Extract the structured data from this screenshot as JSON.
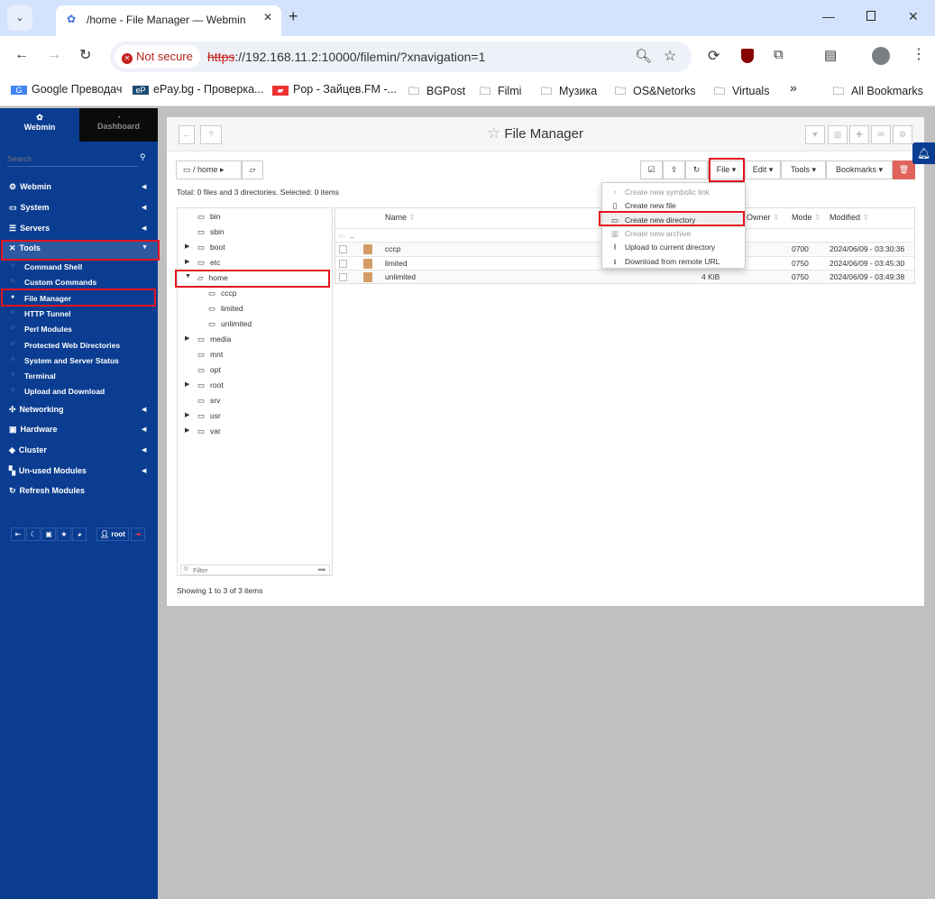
{
  "browser": {
    "tab_title": "/home - File Manager — Webmin",
    "not_secure": "Not secure",
    "url_scheme": "https",
    "url_rest": "://192.168.11.2:10000/filemin/?xnavigation=1",
    "bookmarks": [
      "Google Преводач",
      "ePay.bg - Проверка...",
      "Pop - Зайцев.FM -...",
      "BGPost",
      "Filmi",
      "Музика",
      "OS&Netorks",
      "Virtuals"
    ],
    "more": "»",
    "all_bookmarks": "All Bookmarks"
  },
  "sidebar": {
    "webmin_tab": "Webmin",
    "dashboard_tab": "Dashboard",
    "search_placeholder": "Search",
    "items": [
      {
        "label": "Webmin",
        "icon": "⚙"
      },
      {
        "label": "System",
        "icon": "▭"
      },
      {
        "label": "Servers",
        "icon": "☰"
      },
      {
        "label": "Tools",
        "icon": "✕"
      }
    ],
    "tools_sub": [
      "Command Shell",
      "Custom Commands",
      "File Manager",
      "HTTP Tunnel",
      "Perl Modules",
      "Protected Web Directories",
      "System and Server Status",
      "Terminal",
      "Upload and Download"
    ],
    "items2": [
      {
        "label": "Networking",
        "icon": "✣"
      },
      {
        "label": "Hardware",
        "icon": "▣"
      },
      {
        "label": "Cluster",
        "icon": "◈"
      },
      {
        "label": "Un-used Modules",
        "icon": "▚"
      },
      {
        "label": "Refresh Modules",
        "icon": "↻"
      }
    ],
    "user": "root",
    "active": "File Manager"
  },
  "panel": {
    "title": "File Manager",
    "breadcrumb": "home",
    "total": "Total: 0 files and 3 directories. Selected: 0 items",
    "toolbar": {
      "file": "File",
      "edit": "Edit",
      "tools": "Tools",
      "bookmarks": "Bookmarks"
    },
    "tree": [
      {
        "n": "bin",
        "d": 0,
        "e": ""
      },
      {
        "n": "sbin",
        "d": 0,
        "e": ""
      },
      {
        "n": "boot",
        "d": 0,
        "e": "c"
      },
      {
        "n": "etc",
        "d": 0,
        "e": "c"
      },
      {
        "n": "home",
        "d": 0,
        "e": "o"
      },
      {
        "n": "cccp",
        "d": 1,
        "e": ""
      },
      {
        "n": "limited",
        "d": 1,
        "e": ""
      },
      {
        "n": "unlimited",
        "d": 1,
        "e": ""
      },
      {
        "n": "media",
        "d": 0,
        "e": "c"
      },
      {
        "n": "mnt",
        "d": 0,
        "e": ""
      },
      {
        "n": "opt",
        "d": 0,
        "e": ""
      },
      {
        "n": "root",
        "d": 0,
        "e": "c"
      },
      {
        "n": "srv",
        "d": 0,
        "e": ""
      },
      {
        "n": "usr",
        "d": 0,
        "e": "c"
      },
      {
        "n": "var",
        "d": 0,
        "e": "c"
      }
    ],
    "filter_placeholder": "Filter",
    "columns": {
      "name": "Name",
      "owner": "Owner",
      "mode": "Mode",
      "modified": "Modified"
    },
    "parent": "..",
    "rows": [
      {
        "name": "cccp",
        "size": "",
        "mode": "0700",
        "modified": "2024/06/09 - 03:30:36"
      },
      {
        "name": "limited",
        "size": "",
        "mode": "0750",
        "modified": "2024/06/09 - 03:45:30"
      },
      {
        "name": "unlimited",
        "size": "4 KiB",
        "mode": "0750",
        "modified": "2024/06/09 - 03:49:38"
      }
    ],
    "showing": "Showing 1 to 3 of 3 items",
    "file_menu": [
      {
        "label": "Create new symbolic link",
        "disabled": true,
        "icon": "▫"
      },
      {
        "label": "Create new file",
        "disabled": false,
        "icon": "▯"
      },
      {
        "label": "Create new directory",
        "disabled": false,
        "icon": "▭"
      },
      {
        "label": "Create new archive",
        "disabled": true,
        "icon": "▥"
      },
      {
        "label": "Upload to current directory",
        "disabled": false,
        "icon": "⭱"
      },
      {
        "label": "Download from remote URL",
        "disabled": false,
        "icon": "⭳"
      }
    ]
  },
  "colors": {
    "sidebar": "#0a3d91",
    "highlight": "#e4141e",
    "delete": "#e0635d"
  }
}
